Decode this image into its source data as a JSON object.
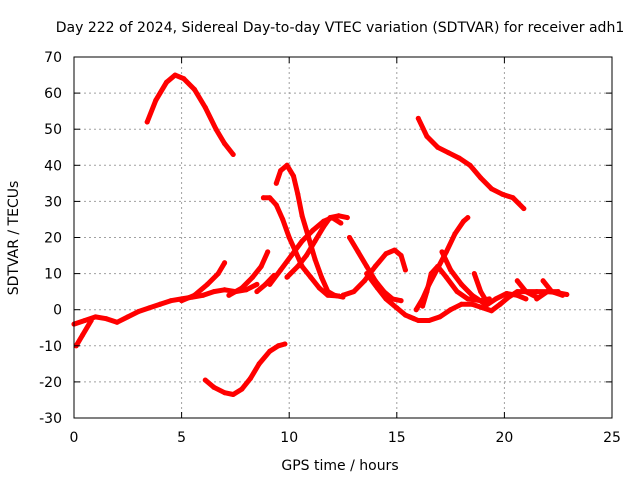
{
  "chart_data": {
    "type": "scatter",
    "title": "Day 222 of 2024, Sidereal Day-to-day VTEC variation (SDTVAR) for receiver adh1",
    "xlabel": "GPS time / hours",
    "ylabel": "SDTVAR / TECUs",
    "xlim": [
      0,
      25
    ],
    "ylim": [
      -30,
      70
    ],
    "xticks": [
      "0",
      "5",
      "10",
      "15",
      "20",
      "25"
    ],
    "yticks": [
      "-30",
      "-20",
      "-10",
      "0",
      "10",
      "20",
      "30",
      "40",
      "50",
      "60",
      "70"
    ],
    "grid": true,
    "legend": "none",
    "color": "#ff0000",
    "series": [
      {
        "points": [
          [
            3.4,
            52
          ],
          [
            3.8,
            58
          ],
          [
            4.3,
            63
          ],
          [
            4.7,
            65
          ],
          [
            5.1,
            64
          ],
          [
            5.6,
            61
          ],
          [
            6.1,
            56
          ],
          [
            6.6,
            50
          ],
          [
            7.0,
            46
          ],
          [
            7.4,
            43
          ]
        ]
      },
      {
        "points": [
          [
            6.1,
            -19.5
          ],
          [
            6.5,
            -21.5
          ],
          [
            7.0,
            -23
          ],
          [
            7.4,
            -23.5
          ],
          [
            7.8,
            -22
          ],
          [
            8.2,
            -19
          ],
          [
            8.6,
            -15
          ],
          [
            9.1,
            -11.5
          ],
          [
            9.5,
            -10
          ],
          [
            9.8,
            -9.5
          ]
        ]
      },
      {
        "points": [
          [
            0.0,
            -4
          ],
          [
            0.5,
            -3
          ],
          [
            1.0,
            -2
          ],
          [
            1.5,
            -2.5
          ],
          [
            2.0,
            -3.5
          ],
          [
            2.5,
            -2
          ],
          [
            3.0,
            -0.5
          ],
          [
            3.5,
            0.5
          ],
          [
            4.0,
            1.5
          ],
          [
            4.5,
            2.5
          ],
          [
            5.0,
            3
          ],
          [
            5.5,
            3.5
          ],
          [
            6.0,
            4
          ],
          [
            6.5,
            5
          ],
          [
            7.0,
            5.5
          ],
          [
            7.5,
            5
          ],
          [
            8.0,
            5.5
          ],
          [
            8.5,
            7
          ]
        ]
      },
      {
        "points": [
          [
            0.1,
            -10
          ],
          [
            0.4,
            -7
          ],
          [
            0.8,
            -3
          ]
        ]
      },
      {
        "points": [
          [
            5.0,
            2.5
          ],
          [
            5.6,
            4
          ],
          [
            6.2,
            7
          ],
          [
            6.7,
            10
          ],
          [
            7.0,
            13
          ]
        ]
      },
      {
        "points": [
          [
            7.2,
            4
          ],
          [
            7.8,
            6
          ],
          [
            8.3,
            9
          ],
          [
            8.7,
            12
          ],
          [
            9.0,
            16
          ]
        ]
      },
      {
        "points": [
          [
            8.5,
            5
          ],
          [
            8.9,
            7
          ],
          [
            9.3,
            9.5
          ]
        ]
      },
      {
        "points": [
          [
            9.4,
            35
          ],
          [
            9.6,
            38.5
          ],
          [
            9.9,
            40
          ],
          [
            10.2,
            37
          ],
          [
            10.4,
            32
          ],
          [
            10.6,
            26
          ],
          [
            10.9,
            20
          ],
          [
            11.2,
            14
          ],
          [
            11.5,
            9
          ],
          [
            11.8,
            5
          ],
          [
            12.1,
            4
          ],
          [
            12.5,
            3.5
          ]
        ]
      },
      {
        "points": [
          [
            8.8,
            31
          ],
          [
            9.1,
            31
          ],
          [
            9.4,
            29
          ],
          [
            9.7,
            25
          ],
          [
            10.0,
            20
          ],
          [
            10.3,
            16
          ],
          [
            10.6,
            12
          ],
          [
            11.0,
            9
          ],
          [
            11.4,
            6
          ],
          [
            11.8,
            4
          ],
          [
            12.3,
            3.8
          ]
        ]
      },
      {
        "points": [
          [
            9.1,
            7
          ],
          [
            9.6,
            11
          ],
          [
            10.1,
            15
          ],
          [
            10.6,
            19
          ],
          [
            11.1,
            22
          ],
          [
            11.6,
            24.5
          ],
          [
            12.0,
            25.5
          ],
          [
            12.4,
            24
          ]
        ]
      },
      {
        "points": [
          [
            9.9,
            9
          ],
          [
            10.4,
            12
          ],
          [
            10.8,
            15
          ],
          [
            11.2,
            19
          ],
          [
            11.6,
            23
          ],
          [
            11.9,
            25.5
          ],
          [
            12.3,
            26
          ],
          [
            12.7,
            25.5
          ]
        ]
      },
      {
        "points": [
          [
            12.5,
            4
          ],
          [
            13.0,
            5
          ],
          [
            13.5,
            8
          ],
          [
            14.0,
            12
          ],
          [
            14.5,
            15.5
          ],
          [
            14.9,
            16.5
          ],
          [
            15.2,
            15
          ],
          [
            15.4,
            11
          ]
        ]
      },
      {
        "points": [
          [
            12.8,
            20
          ],
          [
            13.2,
            16
          ],
          [
            13.6,
            12
          ],
          [
            14.0,
            8
          ],
          [
            14.4,
            5
          ],
          [
            14.8,
            3
          ],
          [
            15.2,
            2.5
          ]
        ]
      },
      {
        "points": [
          [
            13.6,
            10
          ],
          [
            14.1,
            6
          ],
          [
            14.5,
            3
          ],
          [
            15.0,
            0.5
          ],
          [
            15.4,
            -1.5
          ],
          [
            15.8,
            -2.5
          ]
        ]
      },
      {
        "points": [
          [
            15.6,
            -2
          ],
          [
            16.0,
            -3
          ],
          [
            16.5,
            -3
          ],
          [
            17.0,
            -2
          ],
          [
            17.5,
            0
          ],
          [
            18.0,
            1.5
          ],
          [
            18.5,
            1.5
          ],
          [
            19.0,
            0.5
          ],
          [
            19.4,
            -0.3
          ],
          [
            19.8,
            1.5
          ],
          [
            20.2,
            3.5
          ],
          [
            20.6,
            5
          ],
          [
            21.0,
            5
          ],
          [
            21.5,
            5
          ],
          [
            22.0,
            5
          ],
          [
            22.4,
            4.8
          ],
          [
            22.9,
            4.2
          ]
        ]
      },
      {
        "points": [
          [
            16.0,
            53
          ],
          [
            16.4,
            48
          ],
          [
            16.9,
            45
          ],
          [
            17.4,
            43.5
          ],
          [
            17.9,
            42
          ],
          [
            18.4,
            40
          ],
          [
            18.9,
            36.5
          ],
          [
            19.4,
            33.5
          ],
          [
            19.9,
            32
          ],
          [
            20.4,
            31
          ],
          [
            20.9,
            28
          ]
        ]
      },
      {
        "points": [
          [
            15.9,
            0
          ],
          [
            16.2,
            3
          ],
          [
            16.5,
            7
          ],
          [
            16.9,
            11.5
          ],
          [
            17.3,
            16
          ],
          [
            17.7,
            21
          ],
          [
            18.1,
            24.5
          ],
          [
            18.3,
            25.5
          ]
        ]
      },
      {
        "points": [
          [
            16.2,
            1
          ],
          [
            16.4,
            5
          ],
          [
            16.6,
            10
          ],
          [
            16.9,
            12
          ],
          [
            17.3,
            9
          ],
          [
            17.8,
            5
          ],
          [
            18.3,
            3
          ],
          [
            18.9,
            2.5
          ],
          [
            19.3,
            3
          ]
        ]
      },
      {
        "points": [
          [
            17.1,
            16
          ],
          [
            17.5,
            11
          ],
          [
            18.0,
            7
          ],
          [
            18.5,
            4
          ],
          [
            19.0,
            2
          ]
        ]
      },
      {
        "points": [
          [
            18.6,
            10
          ],
          [
            18.9,
            5
          ],
          [
            19.2,
            2
          ]
        ]
      },
      {
        "points": [
          [
            19.1,
            1
          ],
          [
            19.6,
            3
          ],
          [
            20.1,
            4.5
          ],
          [
            20.6,
            4
          ],
          [
            21.0,
            3
          ]
        ]
      },
      {
        "points": [
          [
            20.6,
            8
          ],
          [
            21.0,
            5
          ],
          [
            21.5,
            3.5
          ]
        ]
      },
      {
        "points": [
          [
            21.5,
            3
          ],
          [
            22.0,
            5
          ],
          [
            22.5,
            5
          ]
        ]
      },
      {
        "points": [
          [
            21.8,
            8
          ],
          [
            22.2,
            5
          ],
          [
            22.7,
            4
          ]
        ]
      }
    ]
  }
}
